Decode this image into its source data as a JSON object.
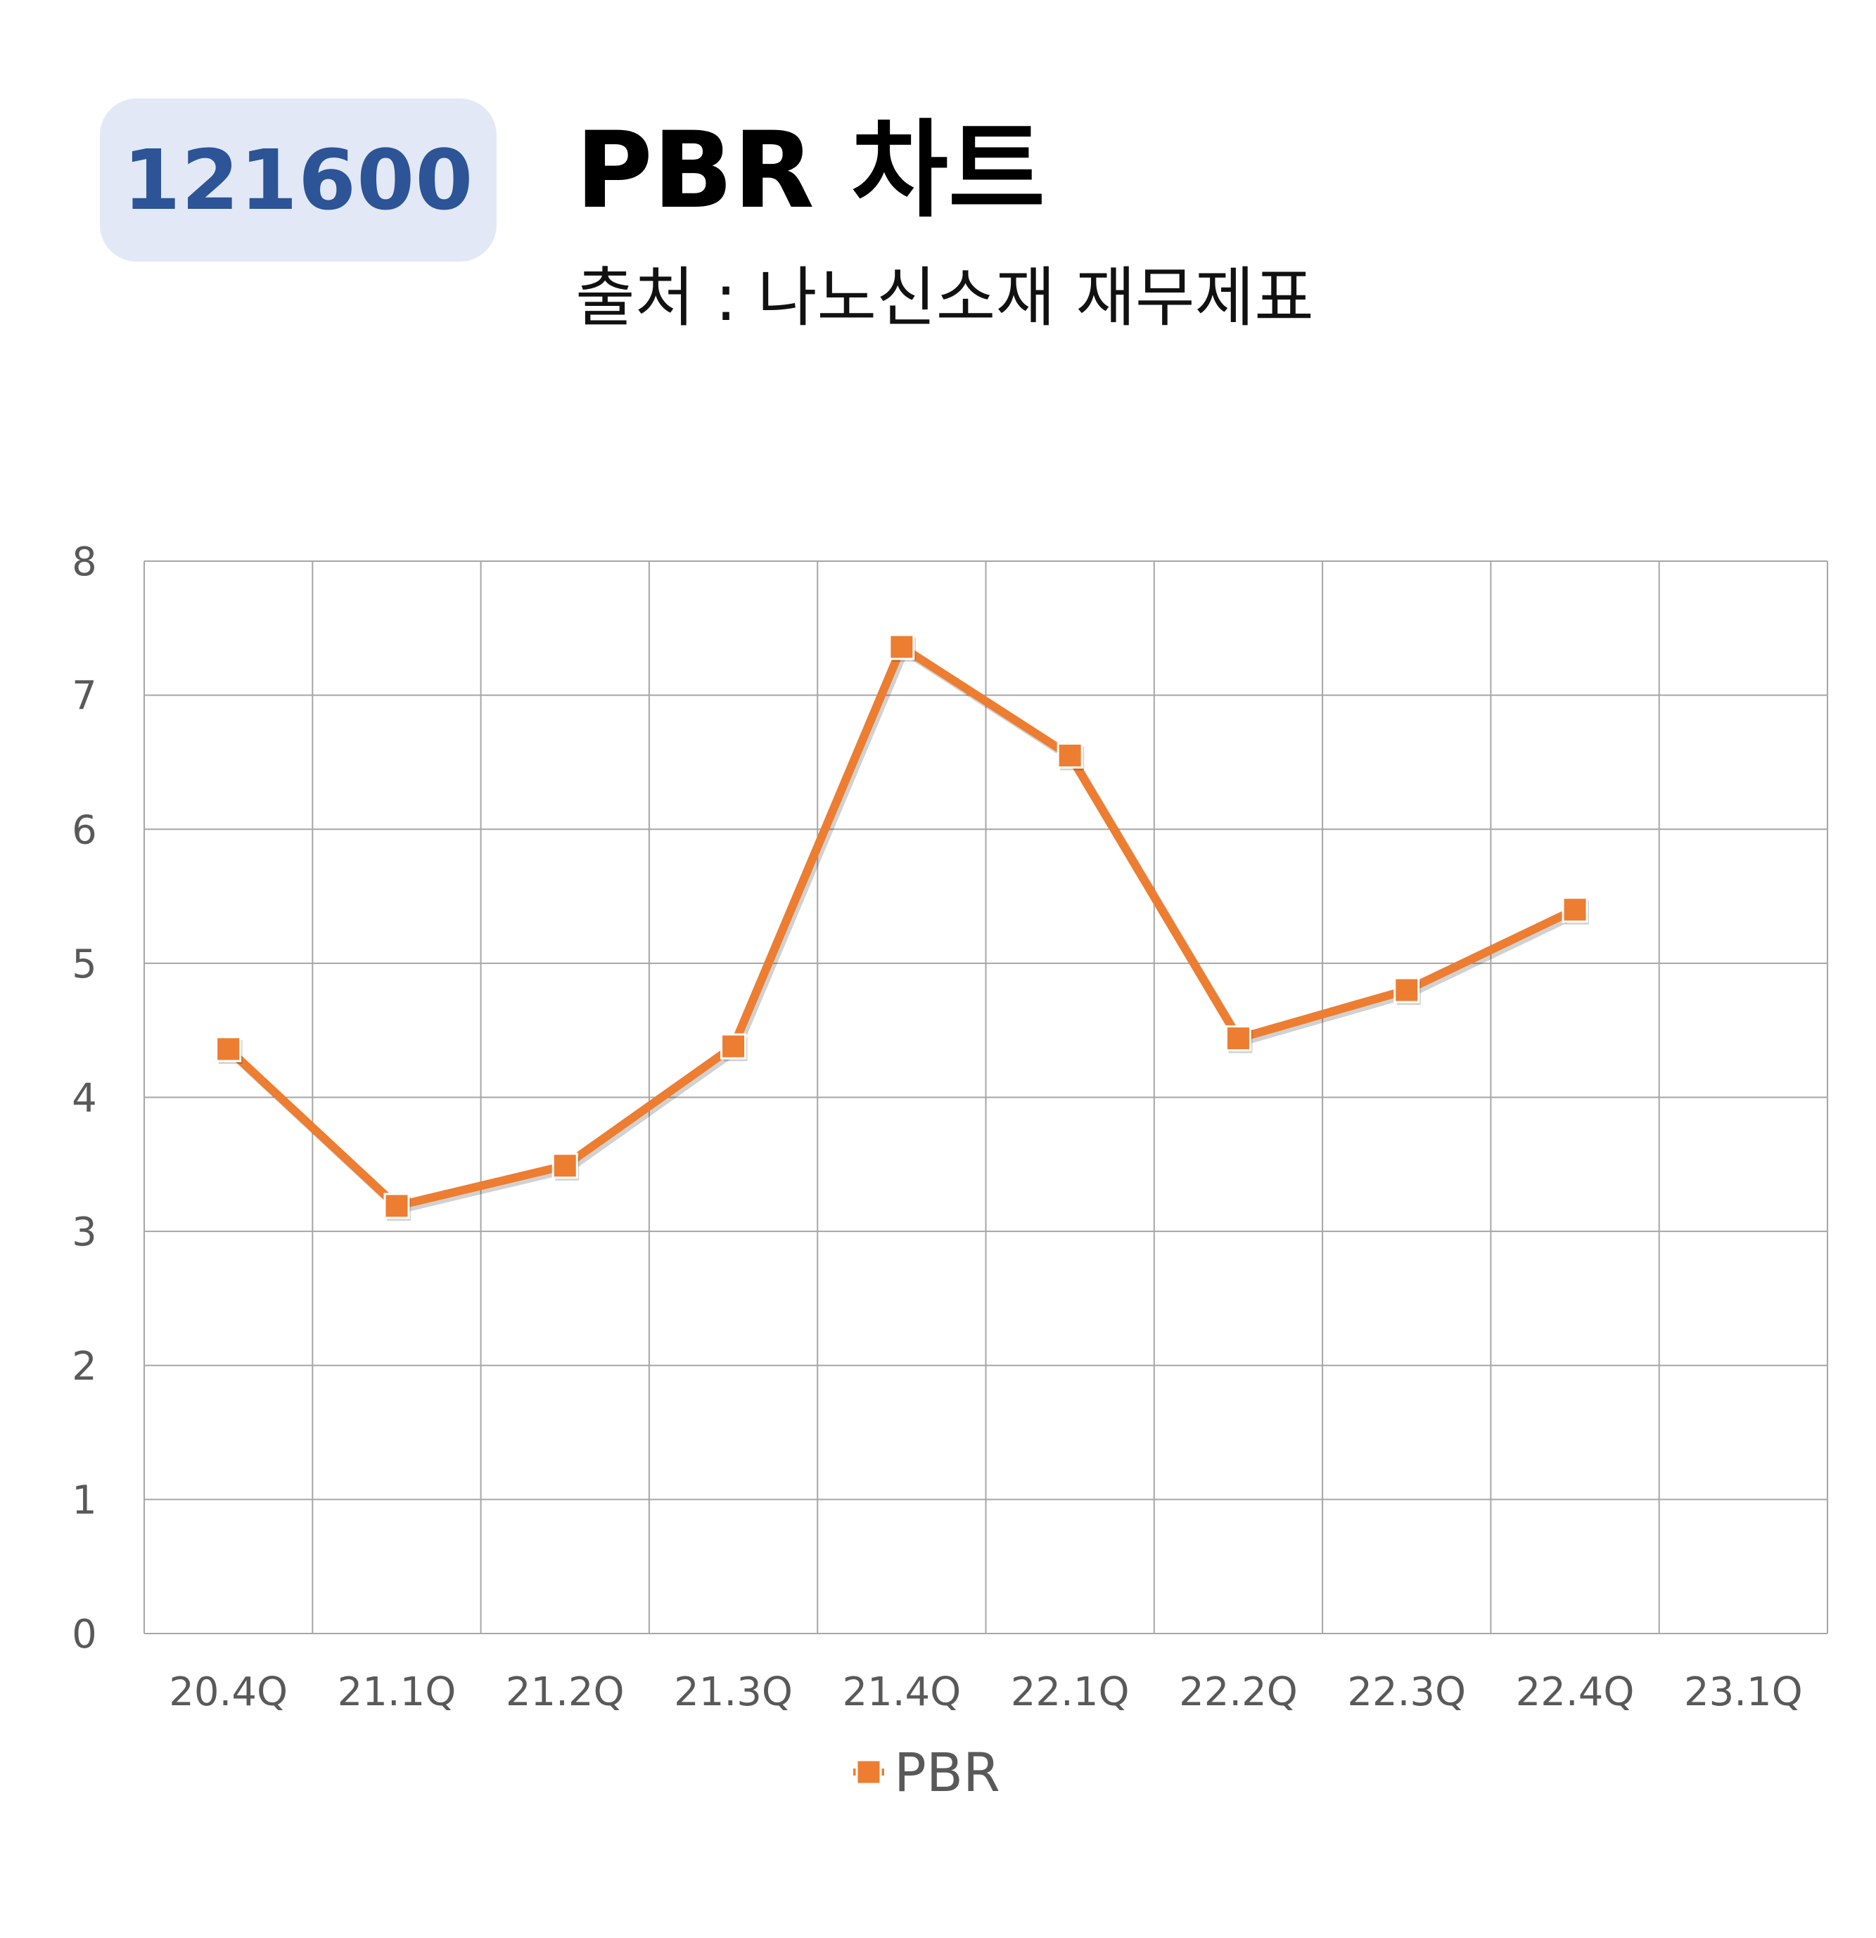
{
  "header": {
    "code": "121600",
    "title": "PBR 차트",
    "subtitle": "출처 : 나노신소재 재무제표"
  },
  "colors": {
    "series": "#ed7d31",
    "badge_bg": "#e2e8f5",
    "badge_text": "#2c5496",
    "grid": "#a6a6a6",
    "tick_text": "#595959"
  },
  "chart_data": {
    "type": "line",
    "categories": [
      "20.4Q",
      "21.1Q",
      "21.2Q",
      "21.3Q",
      "21.4Q",
      "22.1Q",
      "22.2Q",
      "22.3Q",
      "22.4Q",
      "23.1Q"
    ],
    "series": [
      {
        "name": "PBR",
        "values": [
          4.36,
          3.19,
          3.49,
          4.38,
          7.36,
          6.55,
          4.44,
          4.8,
          5.4,
          null
        ],
        "marker": "square"
      }
    ],
    "ylim": [
      0,
      8
    ],
    "yticks": [
      "0",
      "1",
      "2",
      "3",
      "4",
      "5",
      "6",
      "7",
      "8"
    ],
    "grid": true,
    "legend": "bottom",
    "xlabel": "",
    "ylabel": ""
  }
}
